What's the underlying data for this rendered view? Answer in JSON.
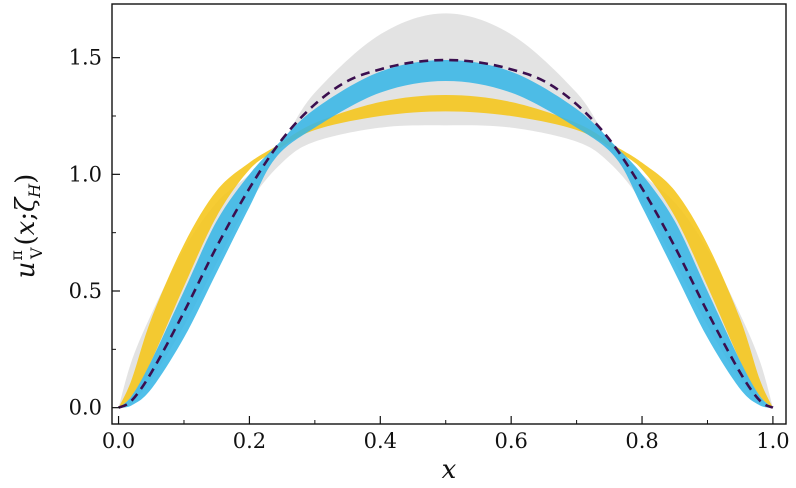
{
  "chart_data": {
    "type": "area",
    "xlabel": "x",
    "ylabel": {
      "u": "u",
      "sup": "π",
      "sub": "V",
      "open": "(",
      "x": "x",
      "sep": ";",
      "zeta": "ζ",
      "zeta_sub": "H",
      "close": ")"
    },
    "xlim": [
      -0.01,
      1.02
    ],
    "ylim": [
      -0.07,
      1.73
    ],
    "x_ticks": [
      0.0,
      0.2,
      0.4,
      0.6,
      0.8,
      1.0
    ],
    "x_tick_labels": [
      "0.0",
      "0.2",
      "0.4",
      "0.6",
      "0.8",
      "1.0"
    ],
    "y_ticks": [
      0.0,
      0.5,
      1.0,
      1.5
    ],
    "y_tick_labels": [
      "0.0",
      "0.5",
      "1.0",
      "1.5"
    ],
    "grid": false,
    "series": [
      {
        "style": "band",
        "color": "#e0e0e0",
        "x": [
          0.0,
          0.02,
          0.05,
          0.1,
          0.15,
          0.2,
          0.25,
          0.3,
          0.4,
          0.5,
          0.6,
          0.7,
          0.75,
          0.8,
          0.85,
          0.9,
          0.95,
          0.98,
          1.0
        ],
        "lower": [
          0.0,
          0.02,
          0.12,
          0.35,
          0.62,
          0.88,
          1.05,
          1.14,
          1.2,
          1.21,
          1.2,
          1.14,
          1.05,
          0.88,
          0.62,
          0.35,
          0.12,
          0.02,
          0.0
        ],
        "upper": [
          0.0,
          0.2,
          0.4,
          0.68,
          0.88,
          1.0,
          1.14,
          1.35,
          1.6,
          1.69,
          1.6,
          1.35,
          1.14,
          1.0,
          0.88,
          0.68,
          0.4,
          0.2,
          0.0
        ]
      },
      {
        "style": "band",
        "color": "#f5c518",
        "x": [
          0.0,
          0.02,
          0.05,
          0.1,
          0.15,
          0.2,
          0.24,
          0.3,
          0.4,
          0.5,
          0.6,
          0.7,
          0.76,
          0.8,
          0.85,
          0.9,
          0.95,
          0.98,
          1.0
        ],
        "lower": [
          0.0,
          0.05,
          0.2,
          0.52,
          0.82,
          1.02,
          1.1,
          1.19,
          1.25,
          1.27,
          1.25,
          1.19,
          1.1,
          1.02,
          0.82,
          0.52,
          0.2,
          0.05,
          0.0
        ],
        "upper": [
          0.0,
          0.12,
          0.38,
          0.7,
          0.93,
          1.05,
          1.12,
          1.22,
          1.31,
          1.34,
          1.31,
          1.22,
          1.12,
          1.05,
          0.93,
          0.7,
          0.38,
          0.12,
          0.0
        ]
      },
      {
        "style": "band",
        "color": "#38b6e6",
        "x": [
          0.0,
          0.02,
          0.05,
          0.1,
          0.15,
          0.2,
          0.24,
          0.3,
          0.4,
          0.5,
          0.6,
          0.7,
          0.76,
          0.8,
          0.85,
          0.9,
          0.95,
          0.98,
          1.0
        ],
        "lower": [
          0.0,
          0.01,
          0.08,
          0.3,
          0.58,
          0.86,
          1.07,
          1.2,
          1.35,
          1.4,
          1.35,
          1.2,
          1.07,
          0.86,
          0.58,
          0.3,
          0.08,
          0.01,
          0.0
        ],
        "upper": [
          0.0,
          0.05,
          0.2,
          0.5,
          0.8,
          1.0,
          1.12,
          1.28,
          1.44,
          1.49,
          1.44,
          1.28,
          1.12,
          1.0,
          0.8,
          0.5,
          0.2,
          0.05,
          0.0
        ]
      },
      {
        "style": "dashed-line",
        "color": "#3b0f4f",
        "x": [
          0.0,
          0.02,
          0.05,
          0.1,
          0.15,
          0.2,
          0.25,
          0.3,
          0.35,
          0.4,
          0.45,
          0.5,
          0.55,
          0.6,
          0.65,
          0.7,
          0.75,
          0.8,
          0.85,
          0.9,
          0.95,
          0.98,
          1.0
        ],
        "y": [
          0.0,
          0.03,
          0.15,
          0.41,
          0.69,
          0.94,
          1.15,
          1.3,
          1.4,
          1.45,
          1.48,
          1.49,
          1.48,
          1.45,
          1.4,
          1.3,
          1.15,
          0.94,
          0.69,
          0.41,
          0.15,
          0.03,
          0.0
        ]
      }
    ]
  }
}
